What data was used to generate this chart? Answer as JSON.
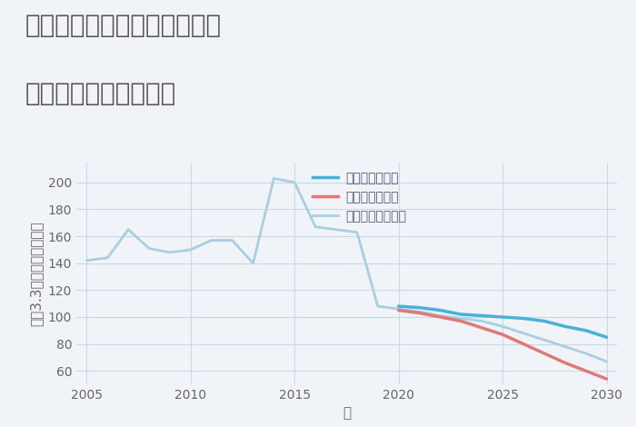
{
  "title_line1": "兵庫県養父市八鹿町上網場の",
  "title_line2": "中古戸建ての価格推移",
  "xlabel": "年",
  "ylabel": "坪（3.3㎡）単価（万円）",
  "background_color": "#f0f4f8",
  "ylim": [
    50,
    215
  ],
  "yticks": [
    60,
    80,
    100,
    120,
    140,
    160,
    180,
    200
  ],
  "xlim": [
    2004.5,
    2030.5
  ],
  "xticks": [
    2005,
    2010,
    2015,
    2020,
    2025,
    2030
  ],
  "grid_color": "#c8d8ea",
  "series": [
    {
      "label": "グッドシナリオ",
      "color": "#4ab0d9",
      "linewidth": 2.5,
      "zorder": 4,
      "years": [
        2020,
        2021,
        2022,
        2023,
        2024,
        2025,
        2026,
        2027,
        2028,
        2029,
        2030
      ],
      "values": [
        108,
        107,
        105,
        102,
        101,
        100,
        99,
        97,
        93,
        90,
        85
      ]
    },
    {
      "label": "バッドシナリオ",
      "color": "#e07878",
      "linewidth": 2.5,
      "zorder": 5,
      "years": [
        2020,
        2021,
        2022,
        2023,
        2024,
        2025,
        2026,
        2027,
        2028,
        2029,
        2030
      ],
      "values": [
        105,
        103,
        100,
        97,
        92,
        87,
        80,
        73,
        66,
        60,
        54
      ]
    },
    {
      "label": "ノーマルシナリオ",
      "color": "#a8cfe0",
      "linewidth": 2.0,
      "zorder": 3,
      "years": [
        2005,
        2006,
        2007,
        2008,
        2009,
        2010,
        2011,
        2012,
        2013,
        2014,
        2015,
        2016,
        2017,
        2018,
        2019,
        2020,
        2021,
        2022,
        2023,
        2024,
        2025,
        2026,
        2027,
        2028,
        2029,
        2030
      ],
      "values": [
        142,
        144,
        165,
        151,
        148,
        150,
        157,
        157,
        140,
        203,
        200,
        167,
        165,
        163,
        108,
        106,
        104,
        101,
        99,
        97,
        93,
        88,
        83,
        78,
        73,
        67
      ]
    }
  ],
  "title_color": "#555555",
  "title_fontsize": 20,
  "axis_label_fontsize": 11,
  "tick_fontsize": 10,
  "legend_fontsize": 10,
  "legend_text_color": "#555577"
}
